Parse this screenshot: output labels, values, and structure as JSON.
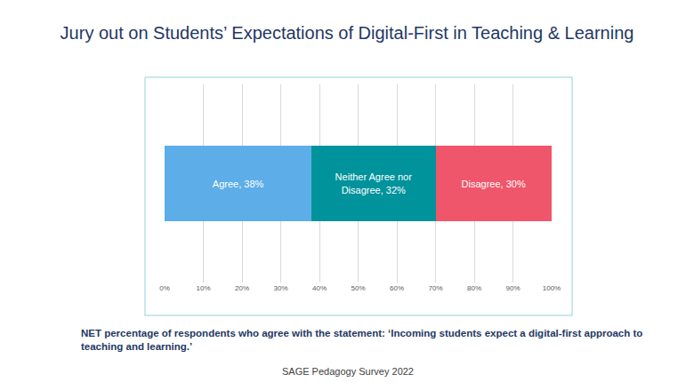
{
  "chart_data": {
    "type": "bar",
    "title": "Jury out on Students’ Expectations of Digital-First in Teaching & Learning",
    "annotations": [
      "NET percentage of respondents who agree with the statement: ‘Incoming students expect a digital-first approach to",
      "teaching and learning.’",
      "SAGE Pedagogy Survey 2022"
    ],
    "categories": [
      null
    ],
    "series": [
      {
        "name": "Agree",
        "color": "#5dade8",
        "values": [
          38
        ],
        "value_labels": [
          "Agree, 38%"
        ]
      },
      {
        "name": "Neither Agree nor Disagree",
        "color": "#00939c",
        "values": [
          32
        ],
        "value_labels": [
          "Neither Agree nor Disagree, 32%"
        ]
      },
      {
        "name": "Disagree",
        "color": "#f0566b",
        "values": [
          30
        ],
        "value_labels": [
          "Disagree, 30%"
        ]
      }
    ],
    "orientation": "horizontal",
    "stacked": true,
    "data_labels": true,
    "tick_labels": "x",
    "grid": true,
    "xlim": [
      0,
      100
    ],
    "xticks": [
      {
        "value": 0,
        "label": "0%"
      },
      {
        "value": 10,
        "label": "10%"
      },
      {
        "value": 20,
        "label": "20%"
      },
      {
        "value": 30,
        "label": "30%"
      },
      {
        "value": 40,
        "label": "40%"
      },
      {
        "value": 50,
        "label": "50%"
      },
      {
        "value": 60,
        "label": "60%"
      },
      {
        "value": 70,
        "label": "70%"
      },
      {
        "value": 80,
        "label": "80%"
      },
      {
        "value": 90,
        "label": "90%"
      },
      {
        "value": 100,
        "label": "100%"
      }
    ]
  }
}
